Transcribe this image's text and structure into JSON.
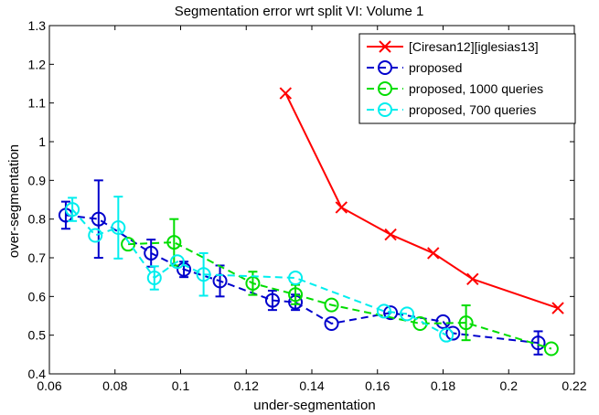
{
  "chart_data": {
    "type": "line",
    "title": "Segmentation error wrt split VI: Volume 1",
    "xlabel": "under-segmentation",
    "ylabel": "over-segmentation",
    "xlim": [
      0.06,
      0.22
    ],
    "ylim": [
      0.4,
      1.3
    ],
    "xticks": [
      0.06,
      0.08,
      0.1,
      0.12,
      0.14,
      0.16,
      0.18,
      0.2,
      0.22
    ],
    "xtick_labels": [
      "0.06",
      "0.08",
      "0.1",
      "0.12",
      "0.14",
      "0.16",
      "0.18",
      "0.2",
      "0.22"
    ],
    "yticks": [
      0.4,
      0.5,
      0.6,
      0.7,
      0.8,
      0.9,
      1.0,
      1.1,
      1.2,
      1.3
    ],
    "ytick_labels": [
      "0.4",
      "0.5",
      "0.6",
      "0.7",
      "0.8",
      "0.9",
      "1",
      "1.1",
      "1.2",
      "1.3"
    ],
    "legend_position": "top-right",
    "series": [
      {
        "name": "[Ciresan12][iglesias13]",
        "color": "#ff0000",
        "marker": "x",
        "dashed": false,
        "points": [
          {
            "x": 0.132,
            "y": 1.125
          },
          {
            "x": 0.149,
            "y": 0.83
          },
          {
            "x": 0.164,
            "y": 0.76
          },
          {
            "x": 0.177,
            "y": 0.712
          },
          {
            "x": 0.189,
            "y": 0.645
          },
          {
            "x": 0.215,
            "y": 0.57
          }
        ]
      },
      {
        "name": "proposed",
        "color": "#0000cc",
        "marker": "o",
        "dashed": true,
        "points": [
          {
            "x": 0.065,
            "y": 0.81,
            "err": 0.035
          },
          {
            "x": 0.075,
            "y": 0.8,
            "err": 0.1
          },
          {
            "x": 0.091,
            "y": 0.712,
            "err": 0.035
          },
          {
            "x": 0.101,
            "y": 0.67,
            "err": 0.02
          },
          {
            "x": 0.112,
            "y": 0.64,
            "err": 0.04
          },
          {
            "x": 0.128,
            "y": 0.59,
            "err": 0.025
          },
          {
            "x": 0.135,
            "y": 0.585,
            "err": 0.02
          },
          {
            "x": 0.146,
            "y": 0.53,
            "err": 0.0
          },
          {
            "x": 0.164,
            "y": 0.558,
            "err": 0.0
          },
          {
            "x": 0.18,
            "y": 0.535,
            "err": 0.0
          },
          {
            "x": 0.183,
            "y": 0.505,
            "err": 0.0
          },
          {
            "x": 0.209,
            "y": 0.48,
            "err": 0.03
          }
        ]
      },
      {
        "name": "proposed, 1000 queries",
        "color": "#00dd00",
        "marker": "o",
        "dashed": true,
        "points": [
          {
            "x": 0.084,
            "y": 0.735,
            "err": 0.0
          },
          {
            "x": 0.098,
            "y": 0.74,
            "err": 0.06
          },
          {
            "x": 0.122,
            "y": 0.634,
            "err": 0.03
          },
          {
            "x": 0.135,
            "y": 0.605,
            "err": 0.025
          },
          {
            "x": 0.146,
            "y": 0.578,
            "err": 0.0
          },
          {
            "x": 0.173,
            "y": 0.53,
            "err": 0.0
          },
          {
            "x": 0.187,
            "y": 0.532,
            "err": 0.045
          },
          {
            "x": 0.213,
            "y": 0.465,
            "err": 0.0
          }
        ]
      },
      {
        "name": "proposed, 700 queries",
        "color": "#00eeee",
        "marker": "o",
        "dashed": true,
        "points": [
          {
            "x": 0.067,
            "y": 0.825,
            "err": 0.03
          },
          {
            "x": 0.074,
            "y": 0.758,
            "err": 0.0
          },
          {
            "x": 0.081,
            "y": 0.778,
            "err": 0.08
          },
          {
            "x": 0.092,
            "y": 0.648,
            "err": 0.03
          },
          {
            "x": 0.099,
            "y": 0.69,
            "err": 0.0
          },
          {
            "x": 0.107,
            "y": 0.657,
            "err": 0.055
          },
          {
            "x": 0.135,
            "y": 0.648,
            "err": 0.0
          },
          {
            "x": 0.162,
            "y": 0.562,
            "err": 0.0
          },
          {
            "x": 0.169,
            "y": 0.555,
            "err": 0.0
          },
          {
            "x": 0.181,
            "y": 0.5,
            "err": 0.0
          }
        ]
      }
    ]
  }
}
